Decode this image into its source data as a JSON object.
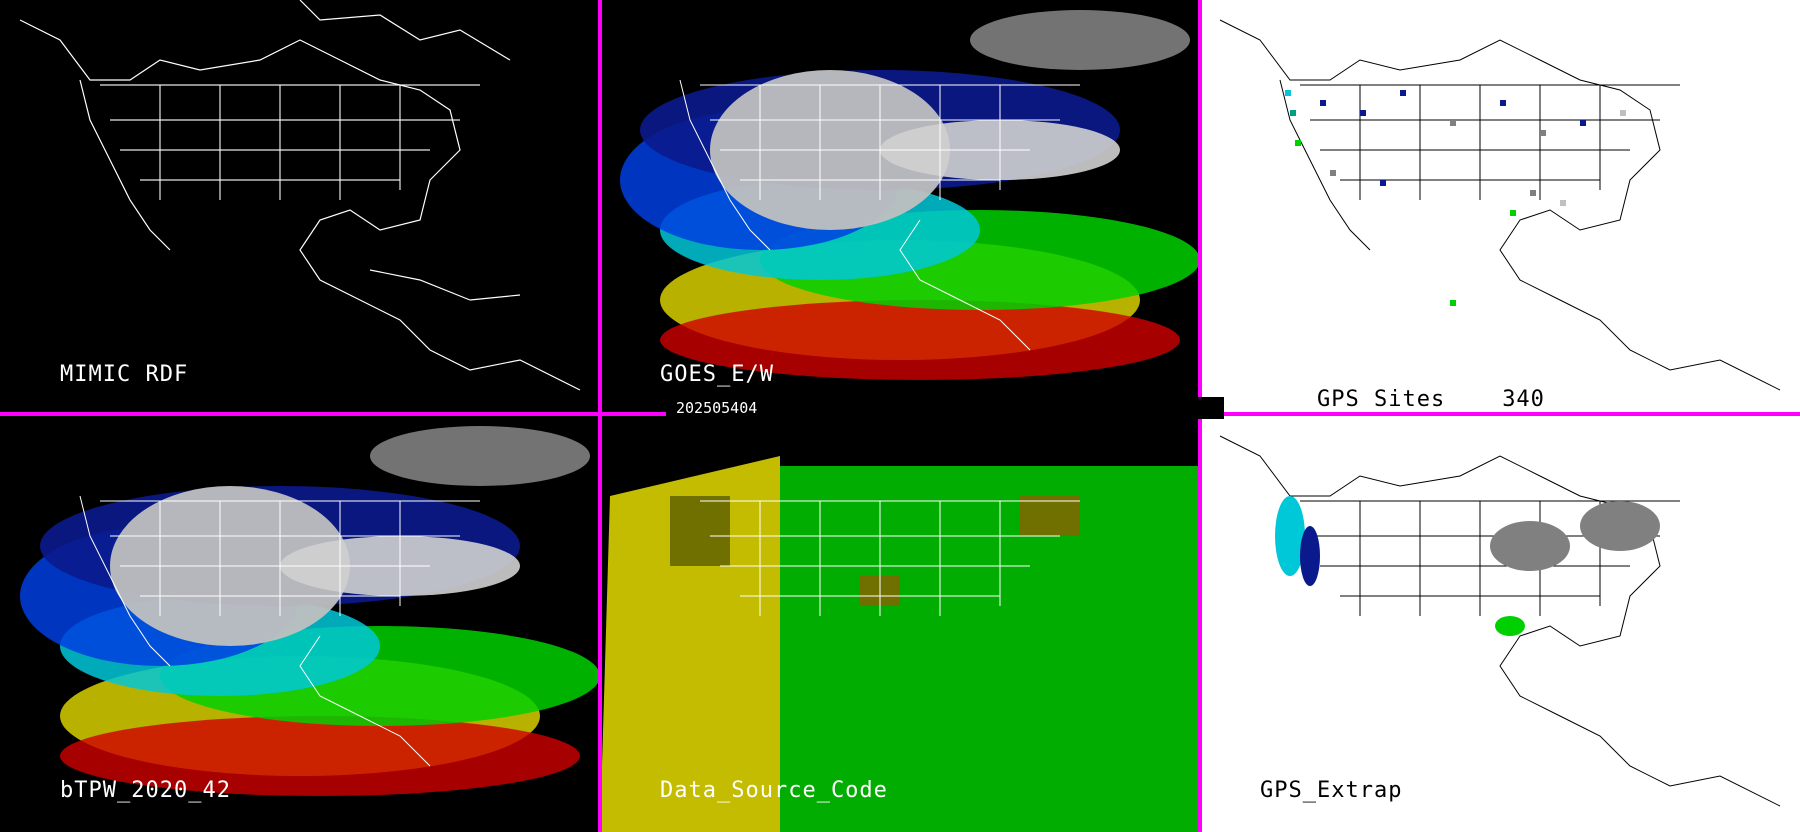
{
  "panels": [
    {
      "id": "mimic-rdf",
      "label": "MIMIC RDF",
      "theme": "dark",
      "fill": "none"
    },
    {
      "id": "goes",
      "label": "GOES_E/W",
      "theme": "dark",
      "fill": "tpw"
    },
    {
      "id": "gps-sites",
      "label": "GPS Sites",
      "count": "340",
      "theme": "light",
      "fill": "sites"
    },
    {
      "id": "btpw",
      "label": "bTPW_2020_42",
      "theme": "dark",
      "fill": "tpw"
    },
    {
      "id": "data-source",
      "label": "Data_Source_Code",
      "theme": "dark",
      "fill": "source"
    },
    {
      "id": "gps-extrap",
      "label": "GPS_Extrap",
      "theme": "light",
      "fill": "extrap"
    }
  ],
  "timestamp": "202505404",
  "colors": {
    "divider": "#ff00ff",
    "dark_bg": "#000000",
    "light_bg": "#ffffff",
    "tpw_scale": [
      "#c0c0c0",
      "#808080",
      "#0a1a8c",
      "#0040e0",
      "#00c8d8",
      "#00d000",
      "#d8d000",
      "#c8a000",
      "#d00000"
    ],
    "source_codes": [
      "#00c000",
      "#d8d000",
      "#707000"
    ]
  }
}
